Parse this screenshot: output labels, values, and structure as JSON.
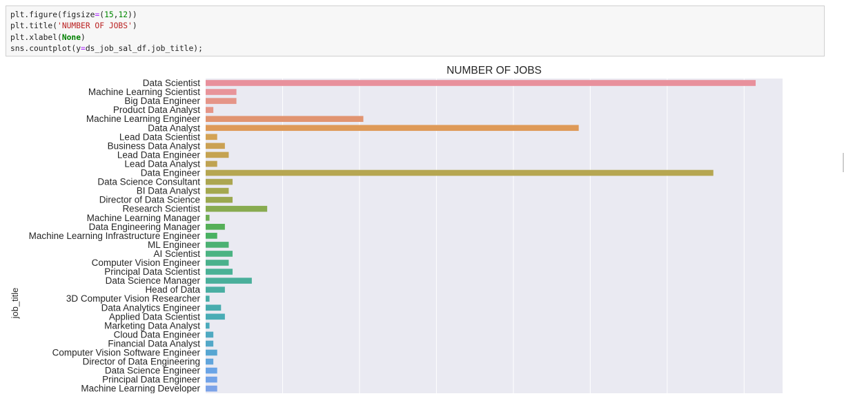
{
  "code_cell": {
    "lines": [
      [
        {
          "t": "plt.figure(figsize",
          "c": "plain"
        },
        {
          "t": "=",
          "c": "op"
        },
        {
          "t": "(",
          "c": "plain"
        },
        {
          "t": "15",
          "c": "num"
        },
        {
          "t": ",",
          "c": "plain"
        },
        {
          "t": "12",
          "c": "num"
        },
        {
          "t": "))",
          "c": "plain"
        }
      ],
      [
        {
          "t": "plt.title(",
          "c": "plain"
        },
        {
          "t": "'NUMBER OF JOBS'",
          "c": "str"
        },
        {
          "t": ")",
          "c": "plain"
        }
      ],
      [
        {
          "t": "plt.xlabel(",
          "c": "plain"
        },
        {
          "t": "None",
          "c": "kw"
        },
        {
          "t": ")",
          "c": "plain"
        }
      ],
      [
        {
          "t": "sns.countplot(y",
          "c": "plain"
        },
        {
          "t": "=",
          "c": "op"
        },
        {
          "t": "ds_job_sal_df.job_title);",
          "c": "plain"
        }
      ]
    ]
  },
  "chart_data": {
    "type": "bar",
    "orientation": "horizontal",
    "title": "NUMBER OF JOBS",
    "xlabel": "",
    "ylabel": "job_title",
    "xlim": [
      0,
      150
    ],
    "grid": true,
    "categories": [
      "Data Scientist",
      "Machine Learning Scientist",
      "Big Data Engineer",
      "Product Data Analyst",
      "Machine Learning Engineer",
      "Data Analyst",
      "Lead Data Scientist",
      "Business Data Analyst",
      "Lead Data Engineer",
      "Lead Data Analyst",
      "Data Engineer",
      "Data Science Consultant",
      "BI Data Analyst",
      "Director of Data Science",
      "Research Scientist",
      "Machine Learning Manager",
      "Data Engineering Manager",
      "Machine Learning Infrastructure Engineer",
      "ML Engineer",
      "AI Scientist",
      "Computer Vision Engineer",
      "Principal Data Scientist",
      "Data Science Manager",
      "Head of Data",
      "3D Computer Vision Researcher",
      "Data Analytics Engineer",
      "Applied Data Scientist",
      "Marketing Data Analyst",
      "Cloud Data Engineer",
      "Financial Data Analyst",
      "Computer Vision Software Engineer",
      "Director of Data Engineering",
      "Data Science Engineer",
      "Principal Data Engineer",
      "Machine Learning Developer"
    ],
    "values": [
      143,
      8,
      8,
      2,
      41,
      97,
      3,
      5,
      6,
      3,
      132,
      7,
      6,
      7,
      16,
      1,
      5,
      3,
      6,
      7,
      6,
      7,
      12,
      5,
      1,
      4,
      5,
      1,
      2,
      2,
      3,
      2,
      3,
      3,
      3
    ],
    "colors": [
      "#e8909c",
      "#e8949a",
      "#e59588",
      "#e59587",
      "#e19470",
      "#de9a58",
      "#d3a255",
      "#cba153",
      "#c5a351",
      "#bfa352",
      "#b6a651",
      "#aca651",
      "#a4a84f",
      "#9ba84f",
      "#88ab50",
      "#6ead53",
      "#55af58",
      "#49b161",
      "#4cb173",
      "#4bb382",
      "#4ab18c",
      "#4ab196",
      "#4aaf9b",
      "#4aaea2",
      "#48ada7",
      "#48acae",
      "#49acb5",
      "#4aaabb",
      "#4ea9c1",
      "#52a8c8",
      "#57a6d2",
      "#61a5dc",
      "#6aa4e6",
      "#72a3e8",
      "#7ca3e8"
    ]
  }
}
